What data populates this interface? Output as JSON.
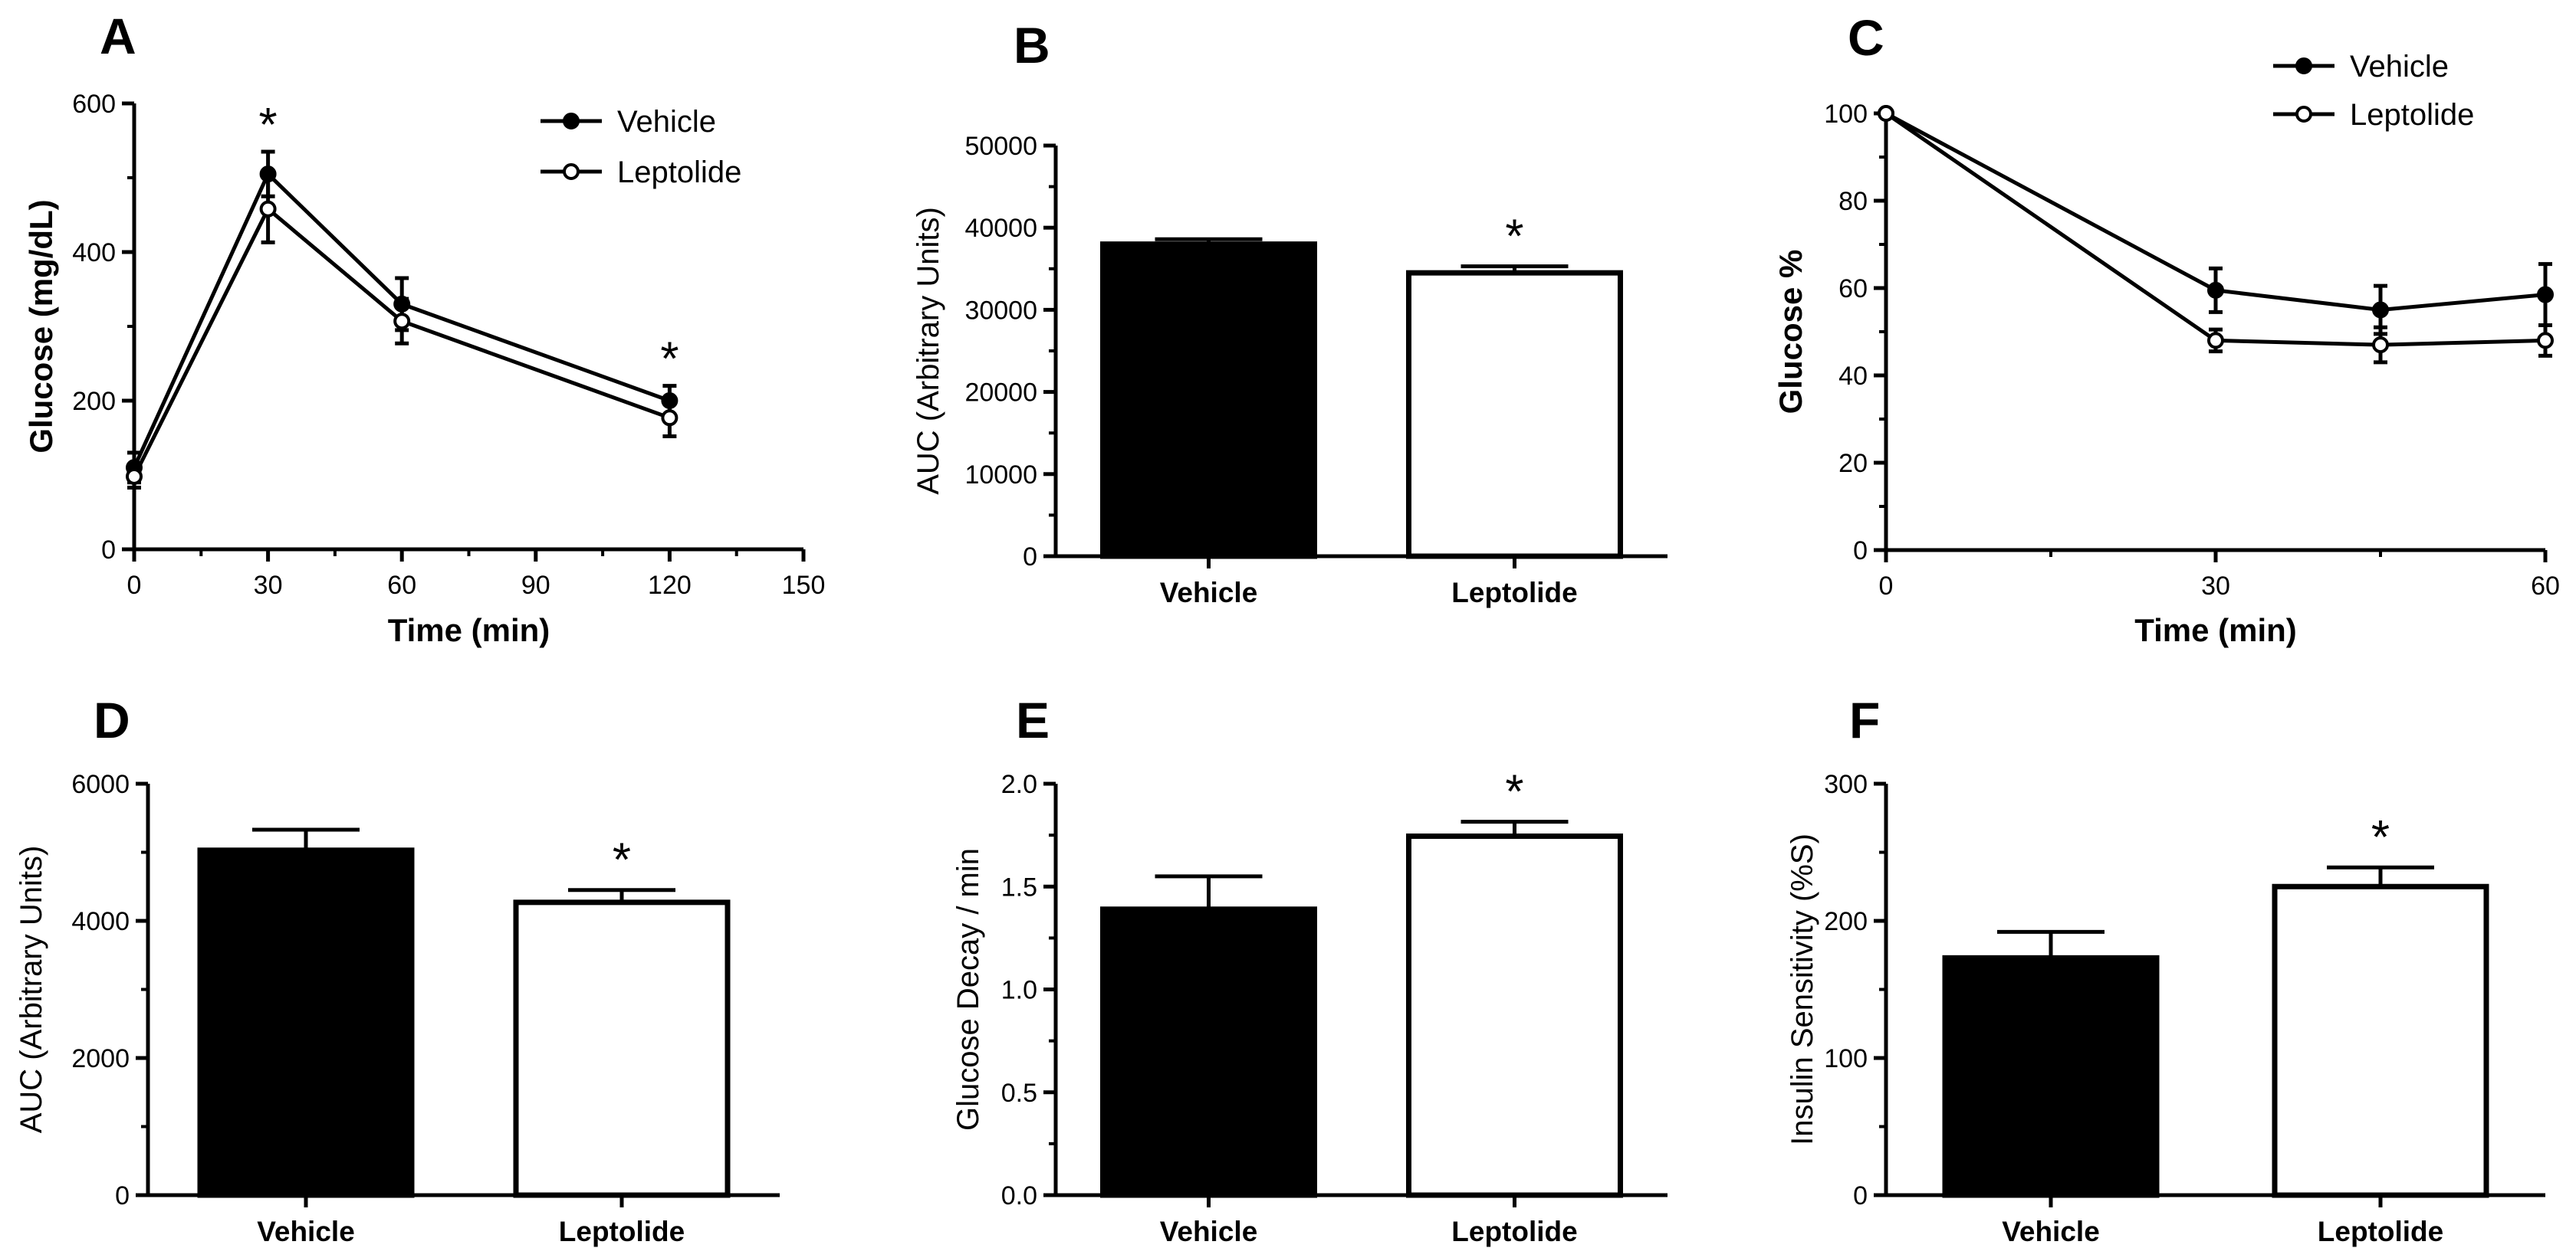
{
  "figure": {
    "panels": [
      {
        "id": "A",
        "letter": "A"
      },
      {
        "id": "B",
        "letter": "B"
      },
      {
        "id": "C",
        "letter": "C"
      },
      {
        "id": "D",
        "letter": "D"
      },
      {
        "id": "E",
        "letter": "E"
      },
      {
        "id": "F",
        "letter": "F"
      }
    ]
  },
  "colors": {
    "vehicle": "#000000",
    "leptolide": "#ffffff",
    "stroke": "#000000"
  },
  "chart_data": [
    {
      "panel": "A",
      "type": "line",
      "xlabel": "Time (min)",
      "ylabel": "Glucose (mg/dL)",
      "xlim": [
        0,
        150
      ],
      "ylim": [
        0,
        600
      ],
      "xticks": [
        0,
        30,
        60,
        90,
        120,
        150
      ],
      "yticks": [
        0,
        200,
        400,
        600
      ],
      "x": [
        0,
        30,
        60,
        120
      ],
      "series": [
        {
          "name": "Vehicle",
          "marker": "filled",
          "values": [
            110,
            505,
            330,
            200
          ],
          "errors": [
            20,
            30,
            35,
            20
          ]
        },
        {
          "name": "Leptolide",
          "marker": "open",
          "values": [
            98,
            458,
            307,
            177
          ],
          "errors": [
            15,
            45,
            30,
            25
          ]
        }
      ],
      "significance": [
        {
          "x": 30,
          "label": "*"
        },
        {
          "x": 120,
          "label": "*"
        }
      ],
      "legend": [
        "Vehicle",
        "Leptolide"
      ],
      "legend_position": "top-right"
    },
    {
      "panel": "B",
      "type": "bar",
      "ylabel": "AUC (Arbitrary Units)",
      "ylim": [
        0,
        50000
      ],
      "yticks": [
        0,
        10000,
        20000,
        30000,
        40000,
        50000
      ],
      "categories": [
        "Vehicle",
        "Leptolide"
      ],
      "values": [
        38000,
        34500
      ],
      "errors": [
        600,
        800
      ],
      "significance": [
        {
          "category": "Leptolide",
          "label": "*"
        }
      ]
    },
    {
      "panel": "C",
      "type": "line",
      "xlabel": "Time (min)",
      "ylabel": "Glucose %",
      "xlim": [
        0,
        60
      ],
      "ylim": [
        0,
        100
      ],
      "xticks": [
        0,
        30,
        60
      ],
      "yticks": [
        0,
        20,
        40,
        60,
        80,
        100
      ],
      "x": [
        0,
        30,
        45,
        60
      ],
      "series": [
        {
          "name": "Vehicle",
          "marker": "filled",
          "values": [
            100,
            59.5,
            55,
            58.5
          ],
          "errors": [
            0,
            5,
            5.5,
            7
          ]
        },
        {
          "name": "Leptolide",
          "marker": "open",
          "values": [
            100,
            48,
            47,
            48
          ],
          "errors": [
            0,
            2.5,
            4,
            3.5
          ]
        }
      ],
      "legend": [
        "Vehicle",
        "Leptolide"
      ],
      "legend_position": "top-right"
    },
    {
      "panel": "D",
      "type": "bar",
      "ylabel": "AUC (Arbitrary Units)",
      "ylim": [
        0,
        6000
      ],
      "yticks": [
        0,
        2000,
        4000,
        6000
      ],
      "categories": [
        "Vehicle",
        "Leptolide"
      ],
      "values": [
        5030,
        4270
      ],
      "errors": [
        300,
        180
      ],
      "significance": [
        {
          "category": "Leptolide",
          "label": "*"
        }
      ]
    },
    {
      "panel": "E",
      "type": "bar",
      "ylabel": "Glucose Decay / min",
      "ylim": [
        0,
        2.0
      ],
      "yticks": [
        0.0,
        0.5,
        1.0,
        1.5,
        2.0
      ],
      "ytick_labels": [
        "0.0",
        "0.5",
        "1.0",
        "1.5",
        "2.0"
      ],
      "categories": [
        "Vehicle",
        "Leptolide"
      ],
      "values": [
        1.39,
        1.745
      ],
      "errors": [
        0.16,
        0.07
      ],
      "significance": [
        {
          "category": "Leptolide",
          "label": "*"
        }
      ]
    },
    {
      "panel": "F",
      "type": "bar",
      "ylabel": "Insulin Sensitivity (%S)",
      "ylim": [
        0,
        300
      ],
      "yticks": [
        0,
        100,
        200,
        300
      ],
      "categories": [
        "Vehicle",
        "Leptolide"
      ],
      "values": [
        173,
        225
      ],
      "errors": [
        19,
        14
      ],
      "significance": [
        {
          "category": "Leptolide",
          "label": "*"
        }
      ]
    }
  ]
}
